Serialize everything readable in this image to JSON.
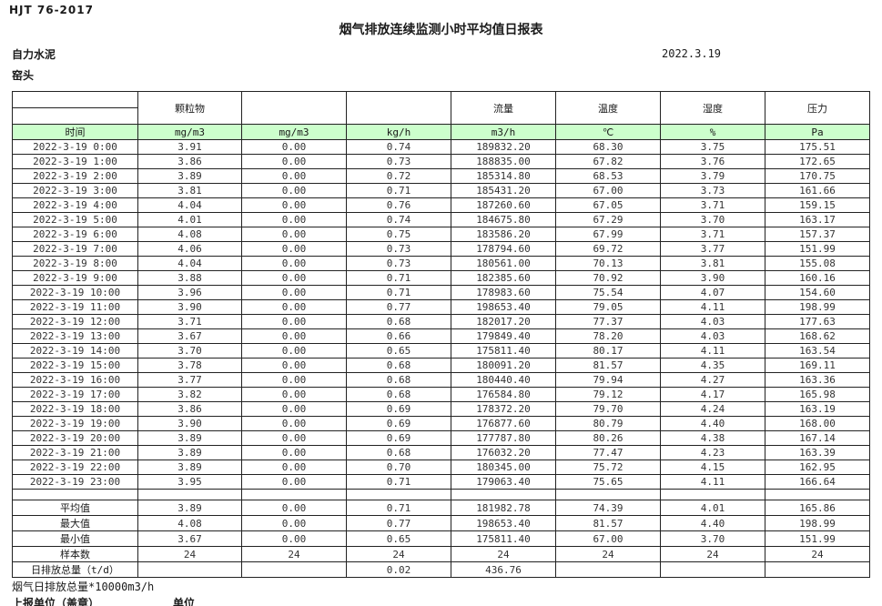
{
  "doc": {
    "standard": "HJT  76-2017",
    "title": "烟气排放连续监测小时平均值日报表",
    "company": "自力水泥",
    "location": "窑头",
    "date": "2022.3.19"
  },
  "colors": {
    "header_green": "#ccffcc",
    "border": "#222222"
  },
  "table": {
    "group_headers": [
      "",
      "颗粒物",
      "",
      "",
      "流量",
      "温度",
      "湿度",
      "压力"
    ],
    "unit_headers": [
      "时间",
      "mg/m3",
      "mg/m3",
      "kg/h",
      "m3/h",
      "℃",
      "%",
      "Pa"
    ],
    "rows": [
      [
        "2022-3-19 0:00",
        "3.91",
        "0.00",
        "0.74",
        "189832.20",
        "68.30",
        "3.75",
        "175.51"
      ],
      [
        "2022-3-19 1:00",
        "3.86",
        "0.00",
        "0.73",
        "188835.00",
        "67.82",
        "3.76",
        "172.65"
      ],
      [
        "2022-3-19 2:00",
        "3.89",
        "0.00",
        "0.72",
        "185314.80",
        "68.53",
        "3.79",
        "170.75"
      ],
      [
        "2022-3-19 3:00",
        "3.81",
        "0.00",
        "0.71",
        "185431.20",
        "67.00",
        "3.73",
        "161.66"
      ],
      [
        "2022-3-19 4:00",
        "4.04",
        "0.00",
        "0.76",
        "187260.60",
        "67.05",
        "3.71",
        "159.15"
      ],
      [
        "2022-3-19 5:00",
        "4.01",
        "0.00",
        "0.74",
        "184675.80",
        "67.29",
        "3.70",
        "163.17"
      ],
      [
        "2022-3-19 6:00",
        "4.08",
        "0.00",
        "0.75",
        "183586.20",
        "67.99",
        "3.71",
        "157.37"
      ],
      [
        "2022-3-19 7:00",
        "4.06",
        "0.00",
        "0.73",
        "178794.60",
        "69.72",
        "3.77",
        "151.99"
      ],
      [
        "2022-3-19 8:00",
        "4.04",
        "0.00",
        "0.73",
        "180561.00",
        "70.13",
        "3.81",
        "155.08"
      ],
      [
        "2022-3-19 9:00",
        "3.88",
        "0.00",
        "0.71",
        "182385.60",
        "70.92",
        "3.90",
        "160.16"
      ],
      [
        "2022-3-19 10:00",
        "3.96",
        "0.00",
        "0.71",
        "178983.60",
        "75.54",
        "4.07",
        "154.60"
      ],
      [
        "2022-3-19 11:00",
        "3.90",
        "0.00",
        "0.77",
        "198653.40",
        "79.05",
        "4.11",
        "198.99"
      ],
      [
        "2022-3-19 12:00",
        "3.71",
        "0.00",
        "0.68",
        "182017.20",
        "77.37",
        "4.03",
        "177.63"
      ],
      [
        "2022-3-19 13:00",
        "3.67",
        "0.00",
        "0.66",
        "179849.40",
        "78.20",
        "4.03",
        "168.62"
      ],
      [
        "2022-3-19 14:00",
        "3.70",
        "0.00",
        "0.65",
        "175811.40",
        "80.17",
        "4.11",
        "163.54"
      ],
      [
        "2022-3-19 15:00",
        "3.78",
        "0.00",
        "0.68",
        "180091.20",
        "81.57",
        "4.35",
        "169.11"
      ],
      [
        "2022-3-19 16:00",
        "3.77",
        "0.00",
        "0.68",
        "180440.40",
        "79.94",
        "4.27",
        "163.36"
      ],
      [
        "2022-3-19 17:00",
        "3.82",
        "0.00",
        "0.68",
        "176584.80",
        "79.12",
        "4.17",
        "165.98"
      ],
      [
        "2022-3-19 18:00",
        "3.86",
        "0.00",
        "0.69",
        "178372.20",
        "79.70",
        "4.24",
        "163.19"
      ],
      [
        "2022-3-19 19:00",
        "3.90",
        "0.00",
        "0.69",
        "176877.60",
        "80.79",
        "4.40",
        "168.00"
      ],
      [
        "2022-3-19 20:00",
        "3.89",
        "0.00",
        "0.69",
        "177787.80",
        "80.26",
        "4.38",
        "167.14"
      ],
      [
        "2022-3-19 21:00",
        "3.89",
        "0.00",
        "0.68",
        "176032.20",
        "77.47",
        "4.23",
        "163.39"
      ],
      [
        "2022-3-19 22:00",
        "3.89",
        "0.00",
        "0.70",
        "180345.00",
        "75.72",
        "4.15",
        "162.95"
      ],
      [
        "2022-3-19 23:00",
        "3.95",
        "0.00",
        "0.71",
        "179063.40",
        "75.65",
        "4.11",
        "166.64"
      ]
    ],
    "summary": [
      [
        "平均值",
        "3.89",
        "0.00",
        "0.71",
        "181982.78",
        "74.39",
        "4.01",
        "165.86"
      ],
      [
        "最大值",
        "4.08",
        "0.00",
        "0.77",
        "198653.40",
        "81.57",
        "4.40",
        "198.99"
      ],
      [
        "最小值",
        "3.67",
        "0.00",
        "0.65",
        "175811.40",
        "67.00",
        "3.70",
        "151.99"
      ],
      [
        "样本数",
        "24",
        "24",
        "24",
        "24",
        "24",
        "24",
        "24"
      ],
      [
        "日排放总量（t/d）",
        "",
        "",
        "0.02",
        "436.76",
        "",
        "",
        ""
      ]
    ]
  },
  "footer": {
    "note": "烟气日排放总量*10000m3/h",
    "report_unit_label": "上报单位（盖章）",
    "unit_label": "单位"
  }
}
